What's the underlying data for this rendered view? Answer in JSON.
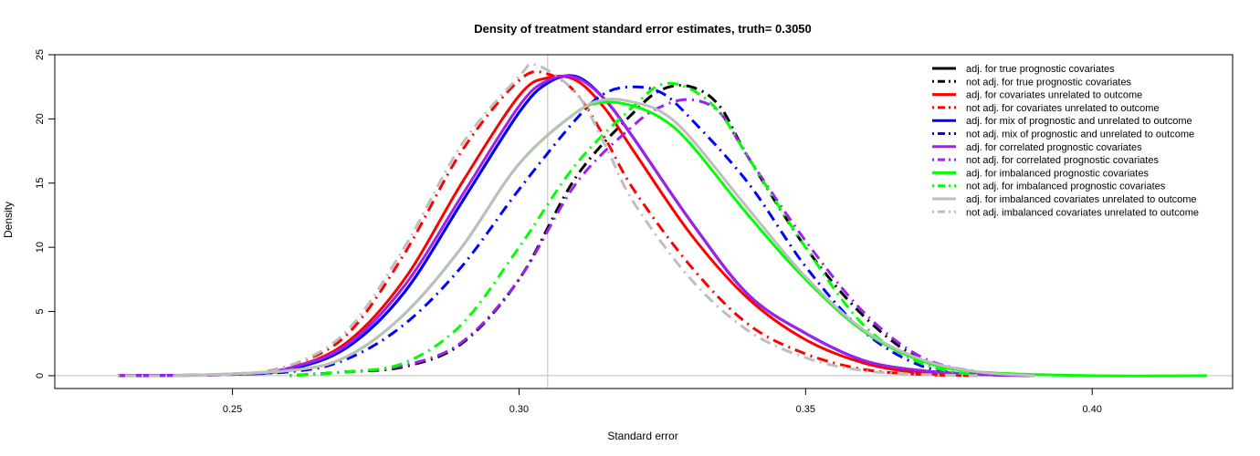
{
  "chart_data": {
    "type": "line",
    "title": "Density of treatment standard error estimates, truth= 0.3050",
    "xlabel": "Standard error",
    "ylabel": "Density",
    "xlim": [
      0.219,
      0.4245
    ],
    "ylim": [
      -1,
      25
    ],
    "xticks": [
      0.25,
      0.3,
      0.35,
      0.4
    ],
    "xtick_labels": [
      "0.25",
      "0.30",
      "0.35",
      "0.40"
    ],
    "yticks": [
      0,
      5,
      10,
      15,
      20,
      25
    ],
    "ytick_labels": [
      "0",
      "5",
      "10",
      "15",
      "20",
      "25"
    ],
    "grid": false,
    "legend_position": "top-right",
    "reference_lines": {
      "vertical_x": 0.305,
      "horizontal_y": 0,
      "color": "#bebebe"
    },
    "series": [
      {
        "name": "adj. for true prognostic covariates",
        "color": "#000000",
        "dash": "solid",
        "x": [
          0.23,
          0.25,
          0.26,
          0.27,
          0.28,
          0.29,
          0.3,
          0.305,
          0.31,
          0.315,
          0.32,
          0.33,
          0.34,
          0.35,
          0.36,
          0.37,
          0.38,
          0.39
        ],
        "y": [
          0,
          0.1,
          0.5,
          2.2,
          6.5,
          13.5,
          20.5,
          22.8,
          23.3,
          21.5,
          18.5,
          12,
          6.3,
          3.3,
          1.2,
          0.4,
          0.1,
          0
        ]
      },
      {
        "name": "not adj. for true prognostic covariates",
        "color": "#000000",
        "dash": "dotdash",
        "x": [
          0.26,
          0.27,
          0.28,
          0.29,
          0.3,
          0.31,
          0.32,
          0.325,
          0.33,
          0.335,
          0.34,
          0.35,
          0.36,
          0.37,
          0.38,
          0.39
        ],
        "y": [
          0,
          0.3,
          0.7,
          2.5,
          7.5,
          15.5,
          20.5,
          22.3,
          22.5,
          21,
          17,
          10,
          4.7,
          1.3,
          0.3,
          0
        ]
      },
      {
        "name": "adj. for covariates unrelated to outcome",
        "color": "#ff0000",
        "dash": "solid",
        "x": [
          0.23,
          0.25,
          0.26,
          0.27,
          0.28,
          0.29,
          0.3,
          0.305,
          0.31,
          0.315,
          0.32,
          0.33,
          0.34,
          0.35,
          0.36,
          0.37,
          0.38
        ],
        "y": [
          0,
          0.1,
          0.6,
          2.6,
          7.5,
          15,
          21.8,
          23.2,
          23,
          20.8,
          17.5,
          11,
          6,
          2.8,
          1,
          0.2,
          0
        ]
      },
      {
        "name": "not adj. for covariates unrelated to outcome",
        "color": "#ff0000",
        "dash": "dotdash",
        "x": [
          0.23,
          0.25,
          0.26,
          0.27,
          0.28,
          0.29,
          0.3,
          0.305,
          0.31,
          0.315,
          0.32,
          0.33,
          0.34,
          0.35,
          0.36,
          0.37,
          0.38
        ],
        "y": [
          0,
          0.1,
          0.8,
          3.2,
          9.5,
          17.5,
          23,
          23.5,
          22,
          18.5,
          14.5,
          8.5,
          4,
          1.7,
          0.5,
          0.1,
          0
        ]
      },
      {
        "name": "adj. for mix of prognostic and unrelated to outcome",
        "color": "#0000ff",
        "dash": "solid",
        "x": [
          0.23,
          0.25,
          0.26,
          0.27,
          0.28,
          0.29,
          0.3,
          0.305,
          0.31,
          0.315,
          0.32,
          0.33,
          0.34,
          0.35,
          0.36,
          0.37,
          0.38,
          0.39
        ],
        "y": [
          0,
          0.1,
          0.5,
          2.2,
          6.5,
          13.5,
          20.5,
          22.8,
          23.3,
          21.5,
          18.5,
          12,
          6.3,
          3.3,
          1.2,
          0.4,
          0.1,
          0
        ]
      },
      {
        "name": "not adj. mix of prognostic and unrelated to outcome",
        "color": "#0000ff",
        "dash": "dotdash",
        "x": [
          0.24,
          0.26,
          0.27,
          0.28,
          0.29,
          0.3,
          0.31,
          0.315,
          0.32,
          0.325,
          0.33,
          0.34,
          0.35,
          0.36,
          0.37,
          0.38
        ],
        "y": [
          0,
          0.3,
          1.3,
          4,
          8.5,
          14.5,
          20,
          22,
          22.5,
          22,
          20,
          15,
          8.5,
          3.5,
          0.8,
          0
        ]
      },
      {
        "name": "adj. for correlated prognostic covariates",
        "color": "#a020f0",
        "dash": "solid",
        "x": [
          0.23,
          0.25,
          0.26,
          0.27,
          0.28,
          0.29,
          0.3,
          0.305,
          0.31,
          0.315,
          0.32,
          0.33,
          0.34,
          0.35,
          0.36,
          0.37,
          0.38,
          0.39
        ],
        "y": [
          0,
          0.1,
          0.6,
          2.4,
          7,
          14,
          21,
          23,
          23.2,
          21.5,
          18.5,
          12,
          6.3,
          3.3,
          1.2,
          0.4,
          0.1,
          0
        ]
      },
      {
        "name": "not adj. for correlated prognostic covariates",
        "color": "#a020f0",
        "dash": "dotdash",
        "x": [
          0.26,
          0.27,
          0.28,
          0.29,
          0.3,
          0.31,
          0.32,
          0.325,
          0.33,
          0.335,
          0.34,
          0.35,
          0.36,
          0.37,
          0.38,
          0.39
        ],
        "y": [
          0,
          0.3,
          0.8,
          2.6,
          7.5,
          15,
          19.5,
          21,
          21.5,
          20.5,
          17,
          10.5,
          5,
          1.5,
          0.3,
          0
        ]
      },
      {
        "name": "adj. for imbalanced prognostic covariates",
        "color": "#00ff00",
        "dash": "solid",
        "x": [
          0.24,
          0.26,
          0.27,
          0.28,
          0.29,
          0.3,
          0.31,
          0.315,
          0.32,
          0.325,
          0.33,
          0.34,
          0.35,
          0.36,
          0.37,
          0.38,
          0.4,
          0.42
        ],
        "y": [
          0,
          0.4,
          1.5,
          4.8,
          10,
          16.5,
          20.5,
          21.3,
          21,
          20,
          18,
          12.5,
          7.5,
          3.5,
          1.2,
          0.3,
          0,
          0
        ]
      },
      {
        "name": "not adj. for imbalanced prognostic covariates",
        "color": "#00ff00",
        "dash": "dotdash",
        "x": [
          0.26,
          0.27,
          0.28,
          0.29,
          0.3,
          0.31,
          0.32,
          0.325,
          0.33,
          0.335,
          0.34,
          0.35,
          0.36,
          0.37,
          0.38
        ],
        "y": [
          0,
          0.3,
          1,
          4,
          10,
          16.5,
          21,
          22.7,
          22.3,
          20.5,
          17,
          10,
          4,
          1,
          0
        ]
      },
      {
        "name": "adj. for imbalanced covariates unrelated to outcome",
        "color": "#bebebe",
        "dash": "solid",
        "x": [
          0.24,
          0.26,
          0.27,
          0.28,
          0.29,
          0.3,
          0.31,
          0.315,
          0.32,
          0.325,
          0.33,
          0.34,
          0.35,
          0.36,
          0.37,
          0.38,
          0.39
        ],
        "y": [
          0,
          0.4,
          1.5,
          4.8,
          10,
          16.5,
          20.5,
          21.5,
          21.3,
          20.5,
          18.5,
          13,
          7.7,
          3.6,
          1.3,
          0.3,
          0
        ]
      },
      {
        "name": "not adj. imbalanced covariates unrelated to outcome",
        "color": "#bebebe",
        "dash": "dotdash",
        "x": [
          0.23,
          0.25,
          0.26,
          0.27,
          0.28,
          0.29,
          0.3,
          0.303,
          0.31,
          0.315,
          0.32,
          0.33,
          0.34,
          0.35,
          0.36,
          0.37,
          0.38
        ],
        "y": [
          0,
          0.1,
          0.8,
          3.5,
          10,
          18,
          23.3,
          24.2,
          22,
          18,
          13.5,
          7.5,
          3.5,
          1.4,
          0.4,
          0.1,
          0
        ]
      }
    ]
  }
}
